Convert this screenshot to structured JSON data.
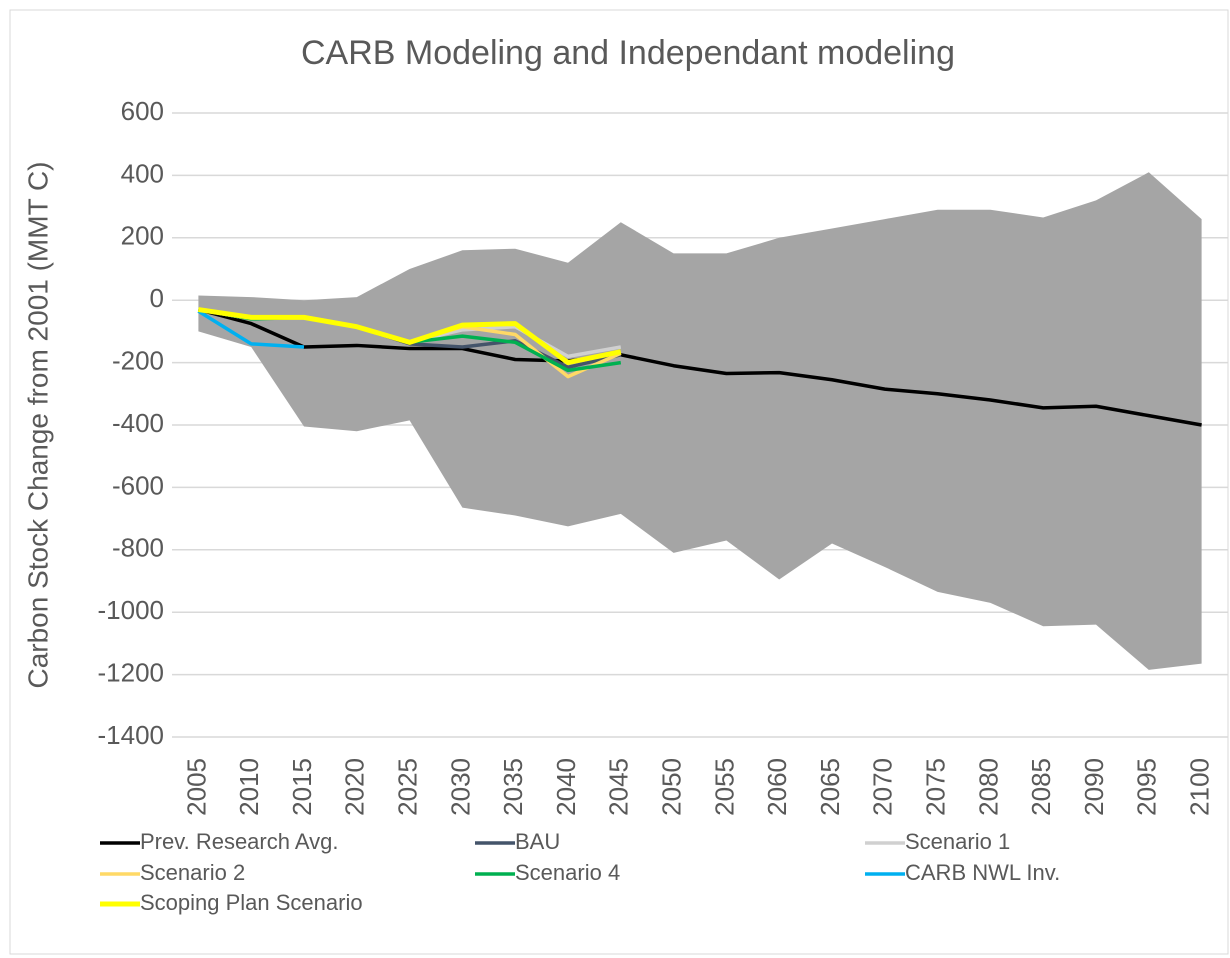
{
  "chart_data": {
    "type": "line",
    "title": "CARB Modeling and Independant modeling",
    "y_label": "Carbon Stock Change from 2001 (MMT C)",
    "categories": [
      "2005",
      "2010",
      "2015",
      "2020",
      "2025",
      "2030",
      "2035",
      "2040",
      "2045",
      "2050",
      "2055",
      "2060",
      "2065",
      "2070",
      "2075",
      "2080",
      "2085",
      "2090",
      "2095",
      "2100"
    ],
    "ylim": [
      -1400,
      600
    ],
    "yticks": [
      -1400,
      -1200,
      -1000,
      -800,
      -600,
      -400,
      -200,
      0,
      200,
      400,
      600
    ],
    "grid": true,
    "legend": "bottom",
    "range": {
      "color": "#a5a5a5",
      "upper": [
        15,
        10,
        0,
        10,
        100,
        160,
        165,
        120,
        250,
        150,
        150,
        200,
        230,
        260,
        290,
        290,
        265,
        320,
        410,
        260
      ],
      "lower": [
        -100,
        -150,
        -405,
        -420,
        -385,
        -665,
        -690,
        -725,
        -685,
        -810,
        -770,
        -895,
        -780,
        -855,
        -935,
        -970,
        -1045,
        -1040,
        -1185,
        -1165
      ]
    },
    "series": [
      {
        "name": "Prev. Research Avg.",
        "color": "#000000",
        "values": [
          -30,
          -75,
          -150,
          -145,
          -155,
          -155,
          -190,
          -195,
          -175,
          -210,
          -235,
          -232,
          -255,
          -285,
          -300,
          -320,
          -345,
          -340,
          -370,
          -400
        ]
      },
      {
        "name": "BAU",
        "color": "#44546a",
        "values": [
          -30,
          -60,
          -55,
          -85,
          -140,
          -150,
          -130,
          -215,
          -175,
          null,
          null,
          null,
          null,
          null,
          null,
          null,
          null,
          null,
          null,
          null
        ]
      },
      {
        "name": "Scenario 1",
        "color": "#d0d0d0",
        "values": [
          -30,
          -60,
          -55,
          -85,
          -135,
          -95,
          -85,
          -180,
          -150,
          null,
          null,
          null,
          null,
          null,
          null,
          null,
          null,
          null,
          null,
          null
        ]
      },
      {
        "name": "Scenario 2",
        "color": "#ffd966",
        "values": [
          -30,
          -60,
          -55,
          -85,
          -135,
          -85,
          -110,
          -245,
          -170,
          null,
          null,
          null,
          null,
          null,
          null,
          null,
          null,
          null,
          null,
          null
        ]
      },
      {
        "name": "Scenario 4",
        "color": "#00b050",
        "values": [
          -30,
          -60,
          -55,
          -85,
          -135,
          -115,
          -135,
          -225,
          -200,
          null,
          null,
          null,
          null,
          null,
          null,
          null,
          null,
          null,
          null,
          null
        ]
      },
      {
        "name": "CARB NWL Inv.",
        "color": "#00b0f0",
        "values": [
          -35,
          -140,
          -150,
          null,
          null,
          null,
          null,
          null,
          null,
          null,
          null,
          null,
          null,
          null,
          null,
          null,
          null,
          null,
          null,
          null
        ]
      },
      {
        "name": "Scoping Plan Scenario",
        "color": "#ffff00",
        "values": [
          -30,
          -55,
          -55,
          -85,
          -135,
          -80,
          -75,
          -200,
          -165,
          null,
          null,
          null,
          null,
          null,
          null,
          null,
          null,
          null,
          null,
          null
        ]
      }
    ]
  }
}
